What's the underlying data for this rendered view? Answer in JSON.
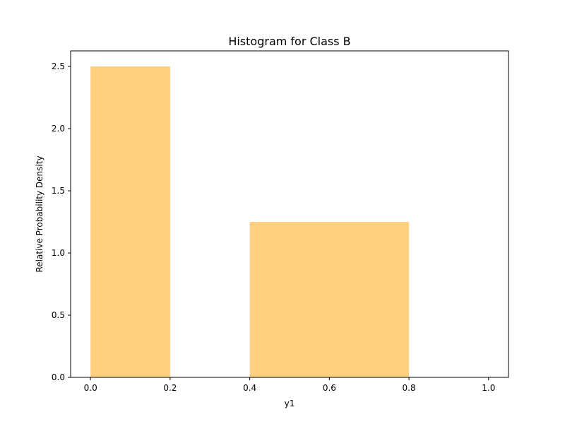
{
  "chart_data": {
    "type": "bar",
    "title": "Histogram for Class B",
    "xlabel": "y1",
    "ylabel": "Relative Probability Density",
    "xlim": [
      -0.05,
      1.05
    ],
    "ylim": [
      0,
      2.625
    ],
    "x_ticks": [
      0.0,
      0.2,
      0.4,
      0.6,
      0.8,
      1.0
    ],
    "x_tick_labels": [
      "0.0",
      "0.2",
      "0.4",
      "0.6",
      "0.8",
      "1.0"
    ],
    "y_ticks": [
      0.0,
      0.5,
      1.0,
      1.5,
      2.0,
      2.5
    ],
    "y_tick_labels": [
      "0.0",
      "0.5",
      "1.0",
      "1.5",
      "2.0",
      "2.5"
    ],
    "bars": [
      {
        "x_start": 0.0,
        "x_end": 0.2,
        "value": 2.5
      },
      {
        "x_start": 0.4,
        "x_end": 0.8,
        "value": 1.25
      }
    ],
    "grid": false,
    "bar_color": "#ffd080"
  }
}
